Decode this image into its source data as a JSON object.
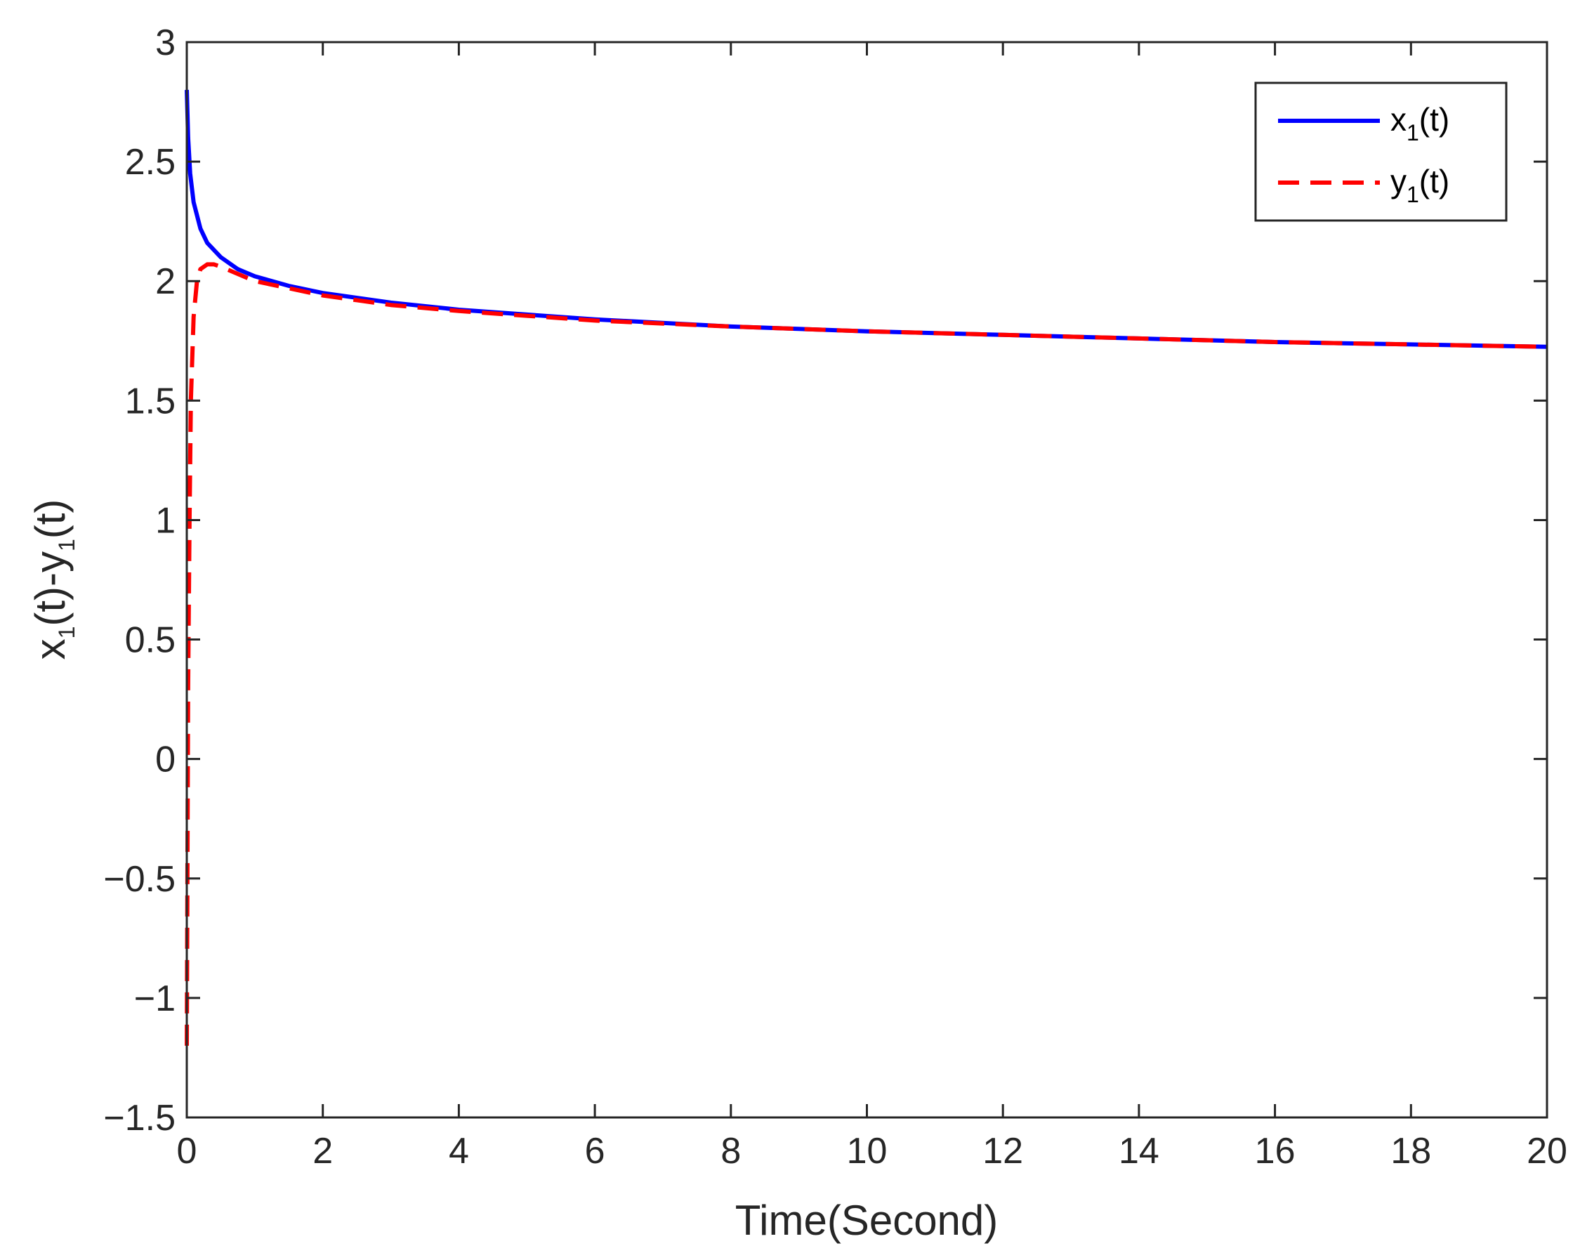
{
  "chart_data": {
    "type": "line",
    "title": "",
    "xlabel": "Time(Second)",
    "ylabel": {
      "base1": "x",
      "sub1": "1",
      "mid": "(t)-y",
      "sub2": "1",
      "end": "(t)"
    },
    "xlim": [
      0,
      20
    ],
    "ylim": [
      -1.5,
      3
    ],
    "xticks": [
      0,
      2,
      4,
      6,
      8,
      10,
      12,
      14,
      16,
      18,
      20
    ],
    "xtick_labels": [
      "0",
      "2",
      "4",
      "6",
      "8",
      "10",
      "12",
      "14",
      "16",
      "18",
      "20"
    ],
    "yticks": [
      -1.5,
      -1,
      -0.5,
      0,
      0.5,
      1,
      1.5,
      2,
      2.5,
      3
    ],
    "ytick_labels": [
      "−1.5",
      "−1",
      "−0.5",
      "0",
      "0.5",
      "1",
      "1.5",
      "2",
      "2.5",
      "3"
    ],
    "grid": false,
    "legend_position": "top-right",
    "series": [
      {
        "name": {
          "base": "x",
          "sub": "1",
          "end": "(t)"
        },
        "color": "#0000ff",
        "style": "solid",
        "x": [
          0,
          0.02,
          0.05,
          0.1,
          0.2,
          0.3,
          0.5,
          0.75,
          1,
          1.5,
          2,
          3,
          4,
          5,
          6,
          8,
          10,
          12,
          14,
          16,
          18,
          20
        ],
        "y": [
          2.8,
          2.6,
          2.45,
          2.33,
          2.22,
          2.16,
          2.1,
          2.05,
          2.02,
          1.98,
          1.95,
          1.91,
          1.88,
          1.86,
          1.84,
          1.81,
          1.79,
          1.775,
          1.76,
          1.745,
          1.735,
          1.725
        ]
      },
      {
        "name": {
          "base": "y",
          "sub": "1",
          "end": "(t)"
        },
        "color": "#ff0000",
        "style": "dashed",
        "x": [
          0,
          0.01,
          0.02,
          0.04,
          0.06,
          0.1,
          0.15,
          0.2,
          0.3,
          0.4,
          0.5,
          0.75,
          1,
          1.5,
          2,
          3,
          4,
          5,
          6,
          8,
          10,
          12,
          14,
          16,
          18,
          20
        ],
        "y": [
          -1.2,
          -0.4,
          0.3,
          1.0,
          1.5,
          1.85,
          2.0,
          2.05,
          2.07,
          2.07,
          2.06,
          2.03,
          2.0,
          1.97,
          1.94,
          1.9,
          1.875,
          1.855,
          1.835,
          1.81,
          1.79,
          1.775,
          1.76,
          1.745,
          1.735,
          1.725
        ]
      }
    ]
  }
}
